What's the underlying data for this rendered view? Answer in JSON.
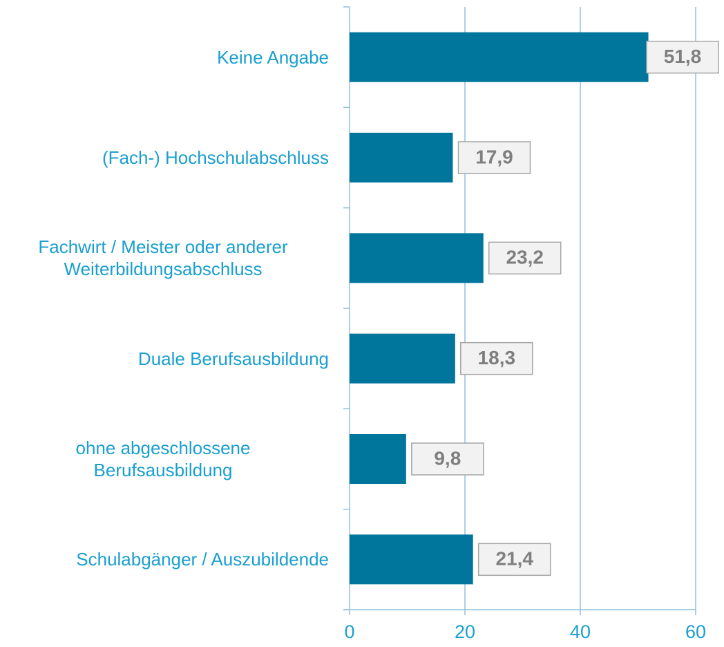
{
  "chart_data": {
    "type": "bar",
    "orientation": "horizontal",
    "categories": [
      "Keine Angabe",
      "(Fach-) Hochschulabschluss",
      "Fachwirt / Meister oder anderer\nWeiterbildungsabschluss",
      "Duale Berufsausbildung",
      "ohne abgeschlossene\nBerufsausbildung",
      "Schulabgänger / Auszubildende"
    ],
    "values": [
      51.8,
      17.9,
      23.2,
      18.3,
      9.8,
      21.4
    ],
    "value_labels": [
      "51,8",
      "17,9",
      "23,2",
      "18,3",
      "9,8",
      "21,4"
    ],
    "color": "#00769c",
    "xlim": [
      0,
      60
    ],
    "xticks": [
      0,
      20,
      40,
      60
    ],
    "grid": true
  }
}
